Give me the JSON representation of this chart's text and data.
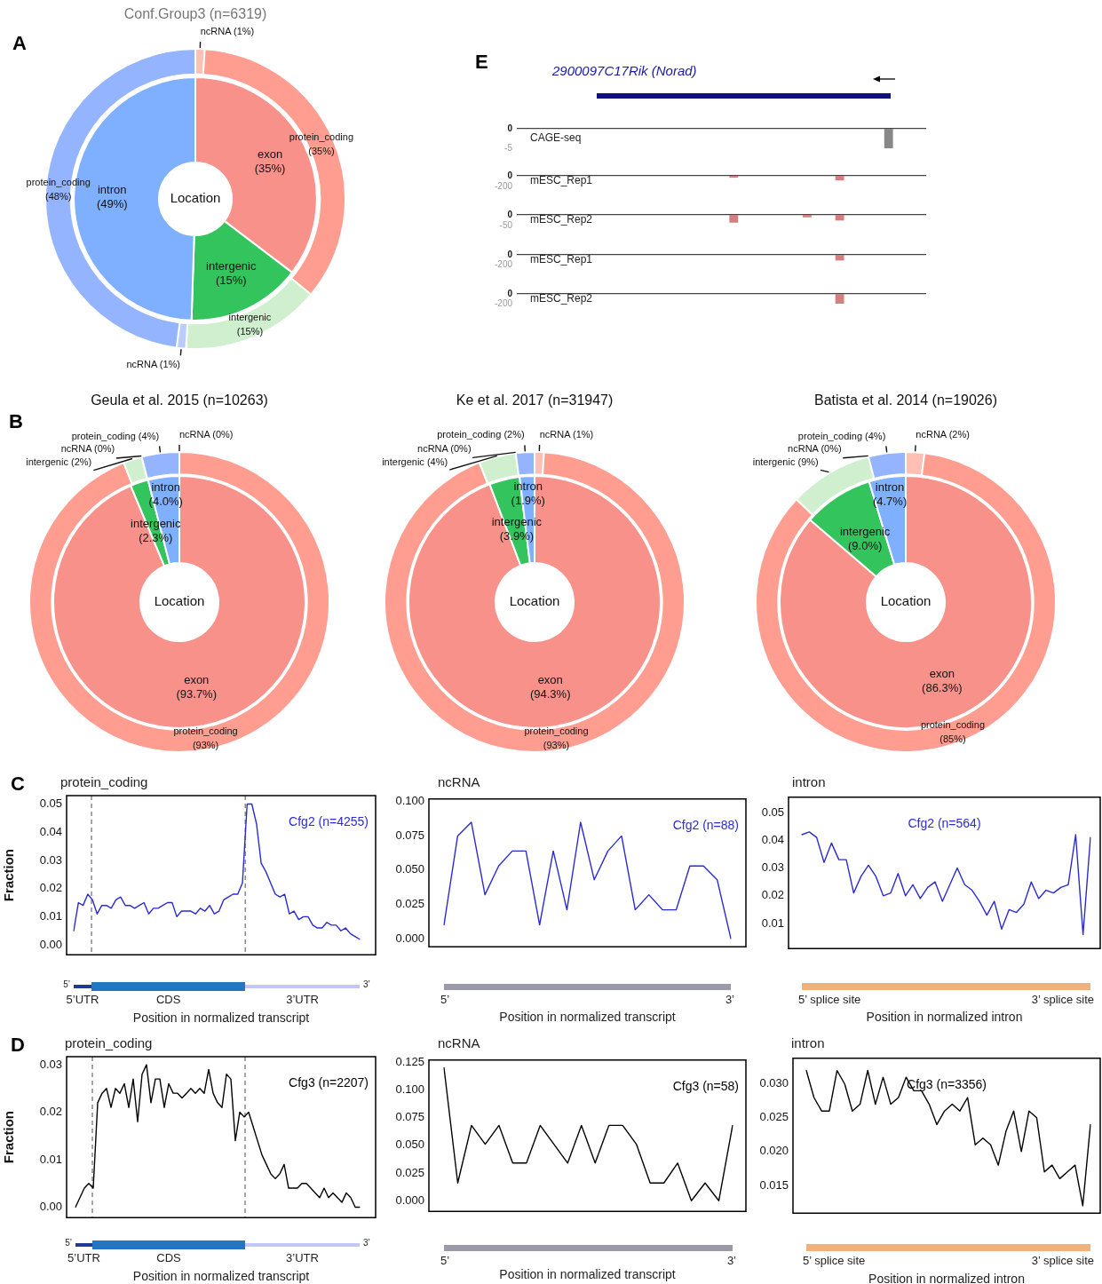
{
  "chart_data": [
    {
      "type": "donut",
      "title": "Conf.Group3 (n=6319)",
      "subtitle": "A",
      "categories": [
        "ncRNA",
        "protein_coding",
        "intergenic",
        "ncRNA",
        "protein_coding"
      ],
      "values": [
        1,
        35,
        15,
        1,
        48
      ],
      "value_labels": [
        "(1%)",
        "(35%)",
        "(15%)",
        "(1%)",
        "(48%)"
      ],
      "colors": [
        "#ffbfb5",
        "#ff9d90",
        "#d0efcf",
        "#b9cdff",
        "#94b4ff"
      ]
    },
    {
      "type": "donut",
      "title": "Location",
      "categories": [
        "exon",
        "intergenic",
        "intron"
      ],
      "values": [
        35,
        15,
        49
      ],
      "value_labels": [
        "(35%)",
        "(15%)",
        "(49%)"
      ],
      "colors": [
        "#f8918a",
        "#33c45d",
        "#7fb0ff"
      ]
    },
    {
      "type": "bar",
      "title": "2900097C17Rik (Norad)",
      "subtitle": "E",
      "categories": [
        null,
        null,
        null,
        null,
        null,
        null,
        null,
        null,
        null,
        null,
        null,
        null,
        null,
        null,
        null,
        null,
        null,
        null,
        null,
        null,
        null,
        null,
        null,
        null,
        null,
        null,
        null,
        null,
        null,
        null,
        null,
        null,
        null,
        null,
        null,
        null,
        null,
        null,
        null,
        null,
        null,
        null,
        null,
        null,
        null,
        null,
        null,
        null,
        null,
        null
      ],
      "series": [
        {
          "name": "CAGE-seq",
          "color": "#888888",
          "values": [
            null,
            null,
            null,
            null,
            null,
            null,
            null,
            null,
            null,
            null,
            null,
            null,
            null,
            null,
            null,
            null,
            null,
            null,
            null,
            null,
            null,
            null,
            null,
            null,
            null,
            null,
            null,
            null,
            null,
            null,
            null,
            null,
            null,
            null,
            null,
            null,
            null,
            null,
            null,
            null,
            null,
            null,
            null,
            null,
            null,
            -5,
            null,
            null,
            null,
            null
          ]
        }
      ],
      "ylim": [
        -5,
        0
      ],
      "yticks": [
        0,
        -5
      ],
      "tick_labels": "y",
      "legend": "left"
    },
    {
      "type": "bar",
      "categories": [
        null,
        null,
        null,
        null,
        null,
        null,
        null,
        null,
        null,
        null,
        null,
        null,
        null,
        null,
        null,
        null,
        null,
        null,
        null,
        null,
        null,
        null,
        null,
        null,
        null,
        null,
        null,
        null,
        null,
        null,
        null,
        null,
        null,
        null,
        null,
        null,
        null,
        null,
        null,
        null,
        null,
        null,
        null,
        null,
        null,
        null,
        null,
        null,
        null,
        null
      ],
      "series": [
        {
          "name": "mESC_Rep1",
          "color": "#d47f7f",
          "values": [
            null,
            null,
            null,
            null,
            null,
            null,
            null,
            null,
            null,
            null,
            null,
            null,
            null,
            null,
            null,
            null,
            null,
            null,
            null,
            null,
            null,
            null,
            null,
            null,
            null,
            null,
            -30,
            null,
            null,
            null,
            null,
            null,
            null,
            null,
            null,
            null,
            null,
            null,
            null,
            -80,
            null,
            null,
            null,
            null,
            null,
            null,
            null,
            null,
            null,
            null
          ]
        }
      ],
      "ylim": [
        -200,
        0
      ],
      "yticks": [
        0,
        -200
      ],
      "tick_labels": "y",
      "legend": "left"
    },
    {
      "type": "bar",
      "categories": [
        null,
        null,
        null,
        null,
        null,
        null,
        null,
        null,
        null,
        null,
        null,
        null,
        null,
        null,
        null,
        null,
        null,
        null,
        null,
        null,
        null,
        null,
        null,
        null,
        null,
        null,
        null,
        null,
        null,
        null,
        null,
        null,
        null,
        null,
        null,
        null,
        null,
        null,
        null,
        null,
        null,
        null,
        null,
        null,
        null,
        null,
        null,
        null,
        null,
        null
      ],
      "series": [
        {
          "name": "mESC_Rep2",
          "color": "#d47f7f",
          "values": [
            null,
            null,
            null,
            null,
            null,
            null,
            null,
            null,
            null,
            null,
            null,
            null,
            null,
            null,
            null,
            null,
            null,
            null,
            null,
            null,
            null,
            null,
            null,
            null,
            null,
            null,
            -35,
            null,
            null,
            null,
            null,
            null,
            null,
            null,
            null,
            -10,
            null,
            null,
            null,
            -25,
            null,
            null,
            null,
            null,
            null,
            null,
            null,
            null,
            null,
            null
          ]
        }
      ],
      "ylim": [
        -50,
        0
      ],
      "yticks": [
        0,
        -50
      ],
      "tick_labels": "y",
      "legend": "left"
    },
    {
      "type": "bar",
      "categories": [
        null,
        null,
        null,
        null,
        null,
        null,
        null,
        null,
        null,
        null,
        null,
        null,
        null,
        null,
        null,
        null,
        null,
        null,
        null,
        null,
        null,
        null,
        null,
        null,
        null,
        null,
        null,
        null,
        null,
        null,
        null,
        null,
        null,
        null,
        null,
        null,
        null,
        null,
        null,
        null,
        null,
        null,
        null,
        null,
        null,
        null,
        null,
        null,
        null,
        null
      ],
      "series": [
        {
          "name": "mESC_Rep1",
          "color": "#d47f7f",
          "values": [
            null,
            null,
            null,
            null,
            null,
            null,
            null,
            null,
            null,
            null,
            null,
            null,
            null,
            null,
            null,
            null,
            null,
            null,
            null,
            null,
            null,
            null,
            null,
            null,
            null,
            null,
            null,
            null,
            null,
            null,
            null,
            null,
            null,
            null,
            null,
            null,
            null,
            null,
            null,
            -110,
            null,
            null,
            null,
            null,
            null,
            null,
            null,
            null,
            null,
            null
          ]
        }
      ],
      "ylim": [
        -200,
        0
      ],
      "yticks": [
        0,
        -200
      ],
      "tick_labels": "y",
      "legend": "left"
    },
    {
      "type": "bar",
      "categories": [
        null,
        null,
        null,
        null,
        null,
        null,
        null,
        null,
        null,
        null,
        null,
        null,
        null,
        null,
        null,
        null,
        null,
        null,
        null,
        null,
        null,
        null,
        null,
        null,
        null,
        null,
        null,
        null,
        null,
        null,
        null,
        null,
        null,
        null,
        null,
        null,
        null,
        null,
        null,
        null,
        null,
        null,
        null,
        null,
        null,
        null,
        null,
        null,
        null,
        null
      ],
      "series": [
        {
          "name": "mESC_Rep2",
          "color": "#d47f7f",
          "values": [
            null,
            null,
            null,
            null,
            null,
            null,
            null,
            null,
            null,
            null,
            null,
            null,
            null,
            null,
            null,
            null,
            null,
            null,
            null,
            null,
            null,
            null,
            null,
            null,
            null,
            null,
            null,
            null,
            null,
            null,
            null,
            null,
            null,
            null,
            null,
            null,
            null,
            null,
            null,
            -200,
            null,
            null,
            null,
            null,
            null,
            null,
            null,
            null,
            null,
            null
          ]
        }
      ],
      "ylim": [
        -200,
        0
      ],
      "yticks": [
        0,
        -200
      ],
      "tick_labels": "y",
      "legend": "left"
    },
    {
      "type": "donut",
      "title": "Geula et al. 2015 (n=10263)",
      "subtitle": "B",
      "categories": [
        "ncRNA",
        "protein_coding",
        "intergenic",
        "ncRNA",
        "protein_coding"
      ],
      "values": [
        0,
        93,
        2,
        0,
        4
      ],
      "value_labels": [
        "(0%)",
        "(93%)",
        "(2%)",
        "(0%)",
        "(4%)"
      ],
      "colors": [
        "#ffbfb5",
        "#ff9d90",
        "#d0efcf",
        "#b9cdff",
        "#94b4ff"
      ]
    },
    {
      "type": "donut",
      "title": "Location",
      "categories": [
        "exon",
        "intergenic",
        "intron"
      ],
      "values": [
        93.7,
        2.3,
        4.0
      ],
      "value_labels": [
        "(93.7%)",
        "(2.3%)",
        "(4.0%)"
      ],
      "colors": [
        "#f8918a",
        "#33c45d",
        "#7fb0ff"
      ]
    },
    {
      "type": "donut",
      "title": "Ke et al. 2017 (n=31947)",
      "categories": [
        "ncRNA",
        "protein_coding",
        "intergenic",
        "ncRNA",
        "protein_coding"
      ],
      "values": [
        1,
        93,
        4,
        0,
        2
      ],
      "value_labels": [
        "(1%)",
        "(93%)",
        "(4%)",
        "(0%)",
        "(2%)"
      ],
      "colors": [
        "#ffbfb5",
        "#ff9d90",
        "#d0efcf",
        "#b9cdff",
        "#94b4ff"
      ]
    },
    {
      "type": "donut",
      "title": "Location",
      "categories": [
        "exon",
        "intergenic",
        "intron"
      ],
      "values": [
        94.3,
        3.9,
        1.9
      ],
      "value_labels": [
        "(94.3%)",
        "(3.9%)",
        "(1.9%)"
      ],
      "colors": [
        "#f8918a",
        "#33c45d",
        "#7fb0ff"
      ]
    },
    {
      "type": "donut",
      "title": "Batista et al. 2014 (n=19026)",
      "categories": [
        "ncRNA",
        "protein_coding",
        "intergenic",
        "ncRNA",
        "protein_coding"
      ],
      "values": [
        2,
        85,
        9,
        0,
        4
      ],
      "value_labels": [
        "(2%)",
        "(85%)",
        "(9%)",
        "(0%)",
        "(4%)"
      ],
      "colors": [
        "#ffbfb5",
        "#ff9d90",
        "#d0efcf",
        "#b9cdff",
        "#94b4ff"
      ]
    },
    {
      "type": "donut",
      "title": "Location",
      "categories": [
        "exon",
        "intergenic",
        "intron"
      ],
      "values": [
        86.3,
        9.0,
        4.7
      ],
      "value_labels": [
        "(86.3%)",
        "(9.0%)",
        "(4.7%)"
      ],
      "colors": [
        "#f8918a",
        "#33c45d",
        "#7fb0ff"
      ]
    },
    {
      "type": "line",
      "title": "protein_coding",
      "subtitle": "C",
      "ylabel": "Fraction",
      "xlabel": "Position in normalized transcript",
      "categories": [
        null,
        null,
        null,
        null,
        null,
        null,
        null,
        null,
        null,
        null,
        null,
        null,
        null,
        null,
        null,
        null,
        null,
        null,
        null,
        null,
        null,
        null,
        null,
        null,
        null,
        null,
        null,
        null,
        null,
        null,
        null,
        null,
        null,
        null,
        null,
        null,
        null,
        null,
        null,
        null,
        null,
        null,
        null,
        null,
        null,
        null,
        null,
        null,
        null,
        null,
        null,
        null,
        null,
        null,
        null,
        null,
        null,
        null,
        null,
        null,
        null,
        null
      ],
      "series": [
        {
          "name": "Cfg2 (n=4255)",
          "color": "#2b2bd1",
          "values": [
            0.005,
            0.015,
            0.014,
            0.018,
            0.016,
            0.011,
            0.014,
            0.014,
            0.013,
            0.016,
            0.017,
            0.014,
            0.014,
            0.013,
            0.014,
            0.015,
            0.011,
            0.013,
            0.013,
            0.014,
            0.015,
            0.015,
            0.01,
            0.012,
            0.012,
            0.012,
            0.011,
            0.013,
            0.012,
            0.014,
            0.011,
            0.012,
            0.016,
            0.017,
            0.018,
            0.018,
            0.022,
            0.05,
            0.05,
            0.043,
            0.029,
            0.026,
            0.022,
            0.018,
            0.017,
            0.018,
            0.011,
            0.012,
            0.009,
            0.01,
            0.01,
            0.007,
            0.006,
            0.006,
            0.008,
            0.007,
            0.007,
            0.005,
            0.006,
            0.004,
            0.003,
            0.002
          ]
        }
      ],
      "ylim": [
        -0.0035,
        0.053
      ],
      "yticks": [
        {
          "value": 0,
          "label": "0.00"
        },
        0.01,
        0.02,
        0.03,
        0.04,
        0.05
      ],
      "tick_labels": "y",
      "legend": "top right",
      "annotations": [
        "5’",
        "5’UTR",
        "CDS",
        "3’UTR",
        "3’"
      ]
    },
    {
      "type": "line",
      "title": "ncRNA",
      "xlabel": "Position in normalized transcript",
      "categories": [
        null,
        null,
        null,
        null,
        null,
        null,
        null,
        null,
        null,
        null,
        null,
        null,
        null,
        null,
        null,
        null,
        null,
        null,
        null,
        null,
        null,
        null
      ],
      "series": [
        {
          "name": "Cfg2 (n=88)",
          "color": "#2b2bd1",
          "values": [
            0.01,
            0.075,
            0.085,
            0.032,
            0.053,
            0.064,
            0.064,
            0.01,
            0.064,
            0.021,
            0.085,
            0.043,
            0.064,
            0.075,
            0.021,
            0.032,
            0.021,
            0.021,
            0.053,
            0.053,
            0.043,
            0.0
          ]
        }
      ],
      "ylim": [
        -0.006,
        0.102
      ],
      "yticks": [
        {
          "value": 0,
          "label": "0.000"
        },
        0.025,
        {
          "value": 0.05,
          "label": "0.050"
        },
        0.075,
        {
          "value": 0.1,
          "label": "0.100"
        }
      ],
      "tick_labels": "y",
      "legend": "top right",
      "annotations": [
        "5’",
        "3’"
      ]
    },
    {
      "type": "line",
      "title": "intron",
      "xlabel": "Position in normalized intron",
      "categories": [
        null,
        null,
        null,
        null,
        null,
        null,
        null,
        null,
        null,
        null,
        null,
        null,
        null,
        null,
        null,
        null,
        null,
        null,
        null,
        null,
        null,
        null,
        null,
        null,
        null,
        null,
        null,
        null,
        null,
        null,
        null,
        null,
        null,
        null,
        null,
        null,
        null,
        null,
        null,
        null
      ],
      "series": [
        {
          "name": "Cfg2 (n=564)",
          "color": "#2b2bd1",
          "values": [
            0.042,
            0.043,
            0.041,
            0.032,
            0.039,
            0.033,
            0.033,
            0.021,
            0.027,
            0.031,
            0.027,
            0.02,
            0.021,
            0.028,
            0.02,
            0.024,
            0.019,
            0.023,
            0.025,
            0.018,
            0.024,
            0.03,
            0.024,
            0.022,
            0.018,
            0.013,
            0.018,
            0.008,
            0.015,
            0.014,
            0.017,
            0.025,
            0.019,
            0.022,
            0.021,
            0.023,
            0.024,
            0.042,
            0.006,
            0.041
          ]
        }
      ],
      "ylim": [
        0.001,
        0.0555
      ],
      "yticks": [
        0.01,
        0.02,
        0.03,
        0.04,
        0.05
      ],
      "tick_labels": "y",
      "legend": "top",
      "annotations": [
        "5’ splice site",
        "3’ splice site"
      ]
    },
    {
      "type": "line",
      "title": "protein_coding",
      "subtitle": "D",
      "ylabel": "Fraction",
      "xlabel": "Position in normalized transcript",
      "categories": [
        null,
        null,
        null,
        null,
        null,
        null,
        null,
        null,
        null,
        null,
        null,
        null,
        null,
        null,
        null,
        null,
        null,
        null,
        null,
        null,
        null,
        null,
        null,
        null,
        null,
        null,
        null,
        null,
        null,
        null,
        null,
        null,
        null,
        null,
        null,
        null,
        null,
        null,
        null,
        null,
        null,
        null,
        null,
        null,
        null,
        null,
        null,
        null,
        null,
        null,
        null,
        null,
        null,
        null,
        null,
        null,
        null,
        null,
        null,
        null,
        null,
        null,
        null,
        null,
        null
      ],
      "series": [
        {
          "name": "Cfg3 (n=2207)",
          "color": "#000000",
          "values": [
            0.0,
            0.002,
            0.004,
            0.005,
            0.004,
            0.022,
            0.024,
            0.025,
            0.021,
            0.025,
            0.024,
            0.026,
            0.021,
            0.027,
            0.018,
            0.028,
            0.03,
            0.022,
            0.027,
            0.027,
            0.021,
            0.026,
            0.024,
            0.024,
            0.023,
            0.024,
            0.025,
            0.024,
            0.025,
            0.024,
            0.029,
            0.024,
            0.022,
            0.021,
            0.028,
            0.027,
            0.014,
            0.02,
            0.019,
            0.02,
            0.017,
            0.014,
            0.011,
            0.009,
            0.007,
            0.006,
            0.007,
            0.009,
            0.004,
            0.004,
            0.004,
            0.005,
            0.005,
            0.004,
            0.003,
            0.002,
            0.004,
            0.002,
            0.003,
            0.002,
            0.001,
            0.003,
            0.002,
            0.0,
            0.0
          ]
        }
      ],
      "ylim": [
        -0.0022,
        0.0317
      ],
      "yticks": [
        {
          "value": 0,
          "label": "0.00"
        },
        0.01,
        0.02,
        0.03
      ],
      "tick_labels": "y",
      "legend": "top right",
      "annotations": [
        "5’",
        "5’UTR",
        "CDS",
        "3’UTR",
        "3’"
      ]
    },
    {
      "type": "line",
      "title": "ncRNA",
      "xlabel": "Position in normalized transcript",
      "categories": [
        null,
        null,
        null,
        null,
        null,
        null,
        null,
        null,
        null,
        null,
        null,
        null,
        null,
        null,
        null,
        null,
        null,
        null,
        null,
        null,
        null,
        null
      ],
      "series": [
        {
          "name": "Cfg3 (n=58)",
          "color": "#000000",
          "values": [
            0.12,
            0.016,
            0.068,
            0.051,
            0.068,
            0.034,
            0.034,
            0.068,
            0.051,
            0.034,
            0.068,
            0.034,
            0.068,
            0.068,
            0.051,
            0.016,
            0.016,
            0.034,
            0.0,
            0.016,
            0.0,
            0.068
          ]
        }
      ],
      "ylim": [
        -0.0096,
        0.127
      ],
      "yticks": [
        {
          "value": 0,
          "label": "0.000"
        },
        0.025,
        {
          "value": 0.05,
          "label": "0.050"
        },
        0.075,
        {
          "value": 0.1,
          "label": "0.100"
        },
        0.125
      ],
      "tick_labels": "y",
      "legend": "top right",
      "annotations": [
        "5’",
        "3’"
      ]
    },
    {
      "type": "line",
      "title": "intron",
      "xlabel": "Position in normalized intron",
      "categories": [
        null,
        null,
        null,
        null,
        null,
        null,
        null,
        null,
        null,
        null,
        null,
        null,
        null,
        null,
        null,
        null,
        null,
        null,
        null,
        null,
        null,
        null,
        null,
        null,
        null,
        null,
        null,
        null,
        null,
        null,
        null,
        null,
        null,
        null,
        null,
        null,
        null,
        null
      ],
      "series": [
        {
          "name": "Cfg3 (n=3356)",
          "color": "#000000",
          "values": [
            0.032,
            0.028,
            0.026,
            0.026,
            0.032,
            0.03,
            0.026,
            0.027,
            0.032,
            0.027,
            0.031,
            0.027,
            0.028,
            0.031,
            0.029,
            0.029,
            0.027,
            0.024,
            0.026,
            0.027,
            0.026,
            0.028,
            0.021,
            0.022,
            0.021,
            0.018,
            0.023,
            0.026,
            0.02,
            0.026,
            0.025,
            0.017,
            0.018,
            0.016,
            0.017,
            0.018,
            0.012,
            0.024
          ]
        }
      ],
      "ylim": [
        0.0109,
        0.0338
      ],
      "yticks": [
        0.015,
        {
          "value": 0.02,
          "label": "0.020"
        },
        0.025,
        {
          "value": 0.03,
          "label": "0.030"
        }
      ],
      "tick_labels": "y",
      "legend": "top",
      "annotations": [
        "5’ splice site",
        "3’ splice site"
      ]
    }
  ]
}
